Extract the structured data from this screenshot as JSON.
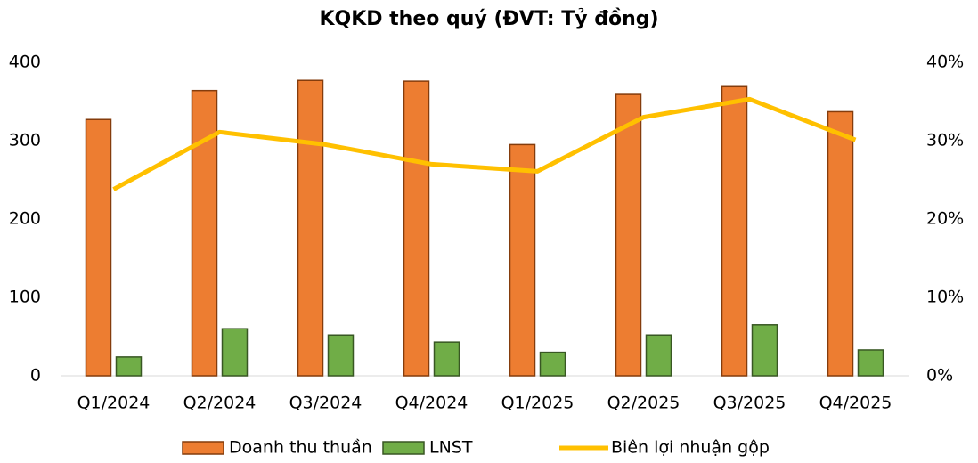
{
  "chart_data": {
    "type": "bar_line",
    "title": "KQKD theo quý (ĐVT: Tỷ đồng)",
    "categories": [
      "Q1/2024",
      "Q2/2024",
      "Q3/2024",
      "Q4/2024",
      "Q1/2025",
      "Q2/2025",
      "Q3/2025",
      "Q4/2025"
    ],
    "series": [
      {
        "name": "Doanh thu thuần",
        "type": "bar",
        "color": "#ed7d31",
        "values": [
          327,
          364,
          377,
          376,
          295,
          359,
          369,
          337
        ]
      },
      {
        "name": "LNST",
        "type": "bar",
        "color": "#70ad47",
        "values": [
          24,
          60,
          52,
          43,
          30,
          52,
          65,
          33
        ]
      },
      {
        "name": "Biên lợi nhuận gộp",
        "type": "line",
        "axis": "y2",
        "color": "#ffc000",
        "values": [
          23.8,
          31.1,
          29.5,
          27.0,
          26.1,
          33.0,
          35.3,
          30.1
        ]
      }
    ],
    "ylim": [
      0,
      400
    ],
    "yticks": [
      0,
      100,
      200,
      300,
      400
    ],
    "y2lim": [
      0,
      40
    ],
    "y2ticks": [
      {
        "value": 0,
        "label": "0%"
      },
      {
        "value": 10,
        "label": "10%"
      },
      {
        "value": 20,
        "label": "20%"
      },
      {
        "value": 30,
        "label": "30%"
      },
      {
        "value": 40,
        "label": "40%"
      }
    ],
    "legend": "bottom"
  }
}
